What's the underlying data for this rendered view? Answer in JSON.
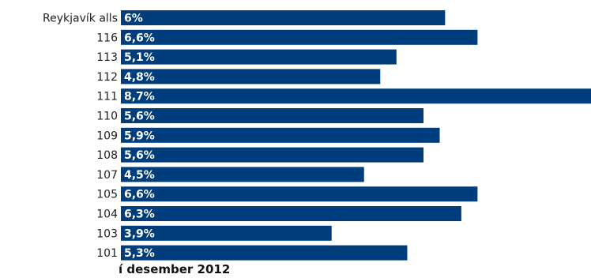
{
  "chart_data": {
    "type": "bar",
    "orientation": "horizontal",
    "title": "",
    "xlabel": "",
    "ylabel": "",
    "bar_color": "#003d7c",
    "categories": [
      "Reykjavík alls",
      "116",
      "113",
      "112",
      "111",
      "110",
      "109",
      "108",
      "107",
      "105",
      "104",
      "103",
      "101"
    ],
    "values": [
      6.0,
      6.6,
      5.1,
      4.8,
      8.7,
      5.6,
      5.9,
      5.6,
      4.5,
      6.6,
      6.3,
      3.9,
      5.3
    ],
    "value_labels": [
      "6%",
      "6,6%",
      "5,1%",
      "4,8%",
      "8,7%",
      "5,6%",
      "5,9%",
      "5,6%",
      "4,5%",
      "6,6%",
      "6,3%",
      "3,9%",
      "5,3%"
    ],
    "xlim": [
      0,
      8.7
    ],
    "grid": false,
    "legend": "none",
    "footnote": "í desember 2012"
  }
}
